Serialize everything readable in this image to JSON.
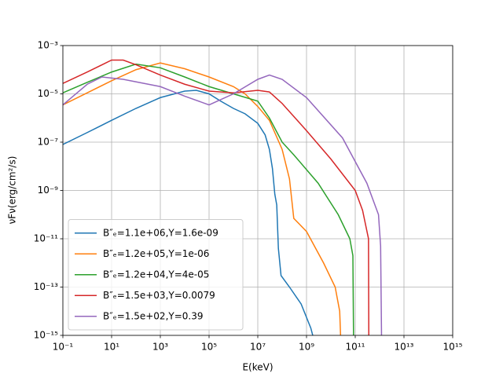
{
  "chart_data": {
    "type": "line",
    "xlabel": "E(keV)",
    "ylabel": "νFν(erg/cm²/s)",
    "xscale": "log",
    "yscale": "log",
    "xlim": [
      0.1,
      1000000000000000.0
    ],
    "ylim": [
      1e-15,
      0.001
    ],
    "xticks": [
      {
        "value": 0.1,
        "label": "10⁻¹"
      },
      {
        "value": 10.0,
        "label": "10¹"
      },
      {
        "value": 1000.0,
        "label": "10³"
      },
      {
        "value": 100000.0,
        "label": "10⁵"
      },
      {
        "value": 10000000.0,
        "label": "10⁷"
      },
      {
        "value": 1000000000.0,
        "label": "10⁹"
      },
      {
        "value": 100000000000.0,
        "label": "10¹¹"
      },
      {
        "value": 10000000000000.0,
        "label": "10¹³"
      },
      {
        "value": 1000000000000000.0,
        "label": "10¹⁵"
      }
    ],
    "yticks": [
      {
        "value": 1e-15,
        "label": "10⁻¹⁵"
      },
      {
        "value": 1e-13,
        "label": "10⁻¹³"
      },
      {
        "value": 1e-11,
        "label": "10⁻¹¹"
      },
      {
        "value": 1e-09,
        "label": "10⁻⁹"
      },
      {
        "value": 1e-07,
        "label": "10⁻⁷"
      },
      {
        "value": 1e-05,
        "label": "10⁻⁵"
      },
      {
        "value": 0.001,
        "label": "10⁻³"
      }
    ],
    "grid": true,
    "legend": "lower left",
    "series": [
      {
        "name": "B″ₑ=1.1e+06,Y=1.6e-09",
        "color": "#1f77b4",
        "x": [
          0.1,
          1,
          10,
          100,
          1000.0,
          10000.0,
          30000.0,
          100000.0,
          300000.0,
          1000000.0,
          3000000.0,
          10000000.0,
          20000000.0,
          30000000.0,
          40000000.0,
          50000000.0,
          60000000.0,
          70000000.0,
          90000000.0,
          200000000.0,
          600000000.0,
          1500000000.0,
          1800000000.0
        ],
        "values": [
          8e-08,
          2.5e-07,
          8e-07,
          2.5e-06,
          7e-06,
          1.3e-05,
          1.4e-05,
          1e-05,
          5e-06,
          2.5e-06,
          1.5e-06,
          6e-07,
          2e-07,
          5e-08,
          8e-09,
          7e-10,
          2.5e-10,
          4e-12,
          3e-13,
          1e-13,
          2e-14,
          2e-15,
          1e-15
        ]
      },
      {
        "name": "B″ₑ=1.2e+05,Y=1e-06",
        "color": "#ff7f0e",
        "x": [
          0.1,
          1,
          10,
          100,
          1000.0,
          10000.0,
          100000.0,
          1000000.0,
          3000000.0,
          10000000.0,
          30000000.0,
          100000000.0,
          200000000.0,
          300000000.0,
          1000000000.0,
          5000000000.0,
          15000000000.0,
          23000000000.0,
          25000000000.0
        ],
        "values": [
          3.5e-06,
          1.1e-05,
          3.5e-05,
          0.0001,
          0.00019,
          0.00011,
          5e-05,
          2e-05,
          1e-05,
          3e-06,
          8e-07,
          5e-08,
          3e-09,
          7e-11,
          2e-11,
          1e-12,
          1e-13,
          1e-14,
          1e-15
        ]
      },
      {
        "name": "B″ₑ=1.2e+04,Y=4e-05",
        "color": "#2ca02c",
        "x": [
          0.1,
          1,
          10,
          100,
          1000.0,
          10000.0,
          100000.0,
          1000000.0,
          10000000.0,
          30000000.0,
          100000000.0,
          300000000.0,
          3000000000.0,
          20000000000.0,
          60000000000.0,
          80000000000.0,
          85000000000.0
        ],
        "values": [
          1.1e-05,
          3e-05,
          8e-05,
          0.00017,
          0.00012,
          5e-05,
          2e-05,
          1e-05,
          5e-06,
          1e-06,
          1e-07,
          3e-08,
          2e-09,
          1e-10,
          1e-11,
          2e-12,
          1e-15
        ]
      },
      {
        "name": "B″ₑ=1.5e+03,Y=0.0079",
        "color": "#d62728",
        "x": [
          0.1,
          1,
          10,
          30,
          100,
          1000.0,
          10000.0,
          100000.0,
          1000000.0,
          10000000.0,
          30000000.0,
          100000000.0,
          1000000000.0,
          10000000000.0,
          100000000000.0,
          200000000000.0,
          350000000000.0,
          360000000000.0
        ],
        "values": [
          2.7e-05,
          8e-05,
          0.00025,
          0.00025,
          0.00016,
          6e-05,
          2.5e-05,
          1.3e-05,
          1.1e-05,
          1.4e-05,
          1.2e-05,
          4e-06,
          3e-07,
          2e-08,
          1e-09,
          1.5e-10,
          1e-11,
          1e-15
        ]
      },
      {
        "name": "B″ₑ=1.5e+02,Y=0.39",
        "color": "#9467bd",
        "x": [
          0.1,
          1,
          4,
          30,
          1000.0,
          10000.0,
          100000.0,
          1000000.0,
          10000000.0,
          30000000.0,
          100000000.0,
          1000000000.0,
          30000000000.0,
          300000000000.0,
          900000000000.0,
          1100000000000.0,
          1200000000000.0
        ],
        "values": [
          3.5e-06,
          2.5e-05,
          5e-05,
          4e-05,
          2e-05,
          8e-06,
          3.5e-06,
          1e-05,
          4e-05,
          6e-05,
          4e-05,
          7e-06,
          1.5e-07,
          2e-09,
          1e-10,
          5e-12,
          1e-15
        ]
      }
    ]
  }
}
